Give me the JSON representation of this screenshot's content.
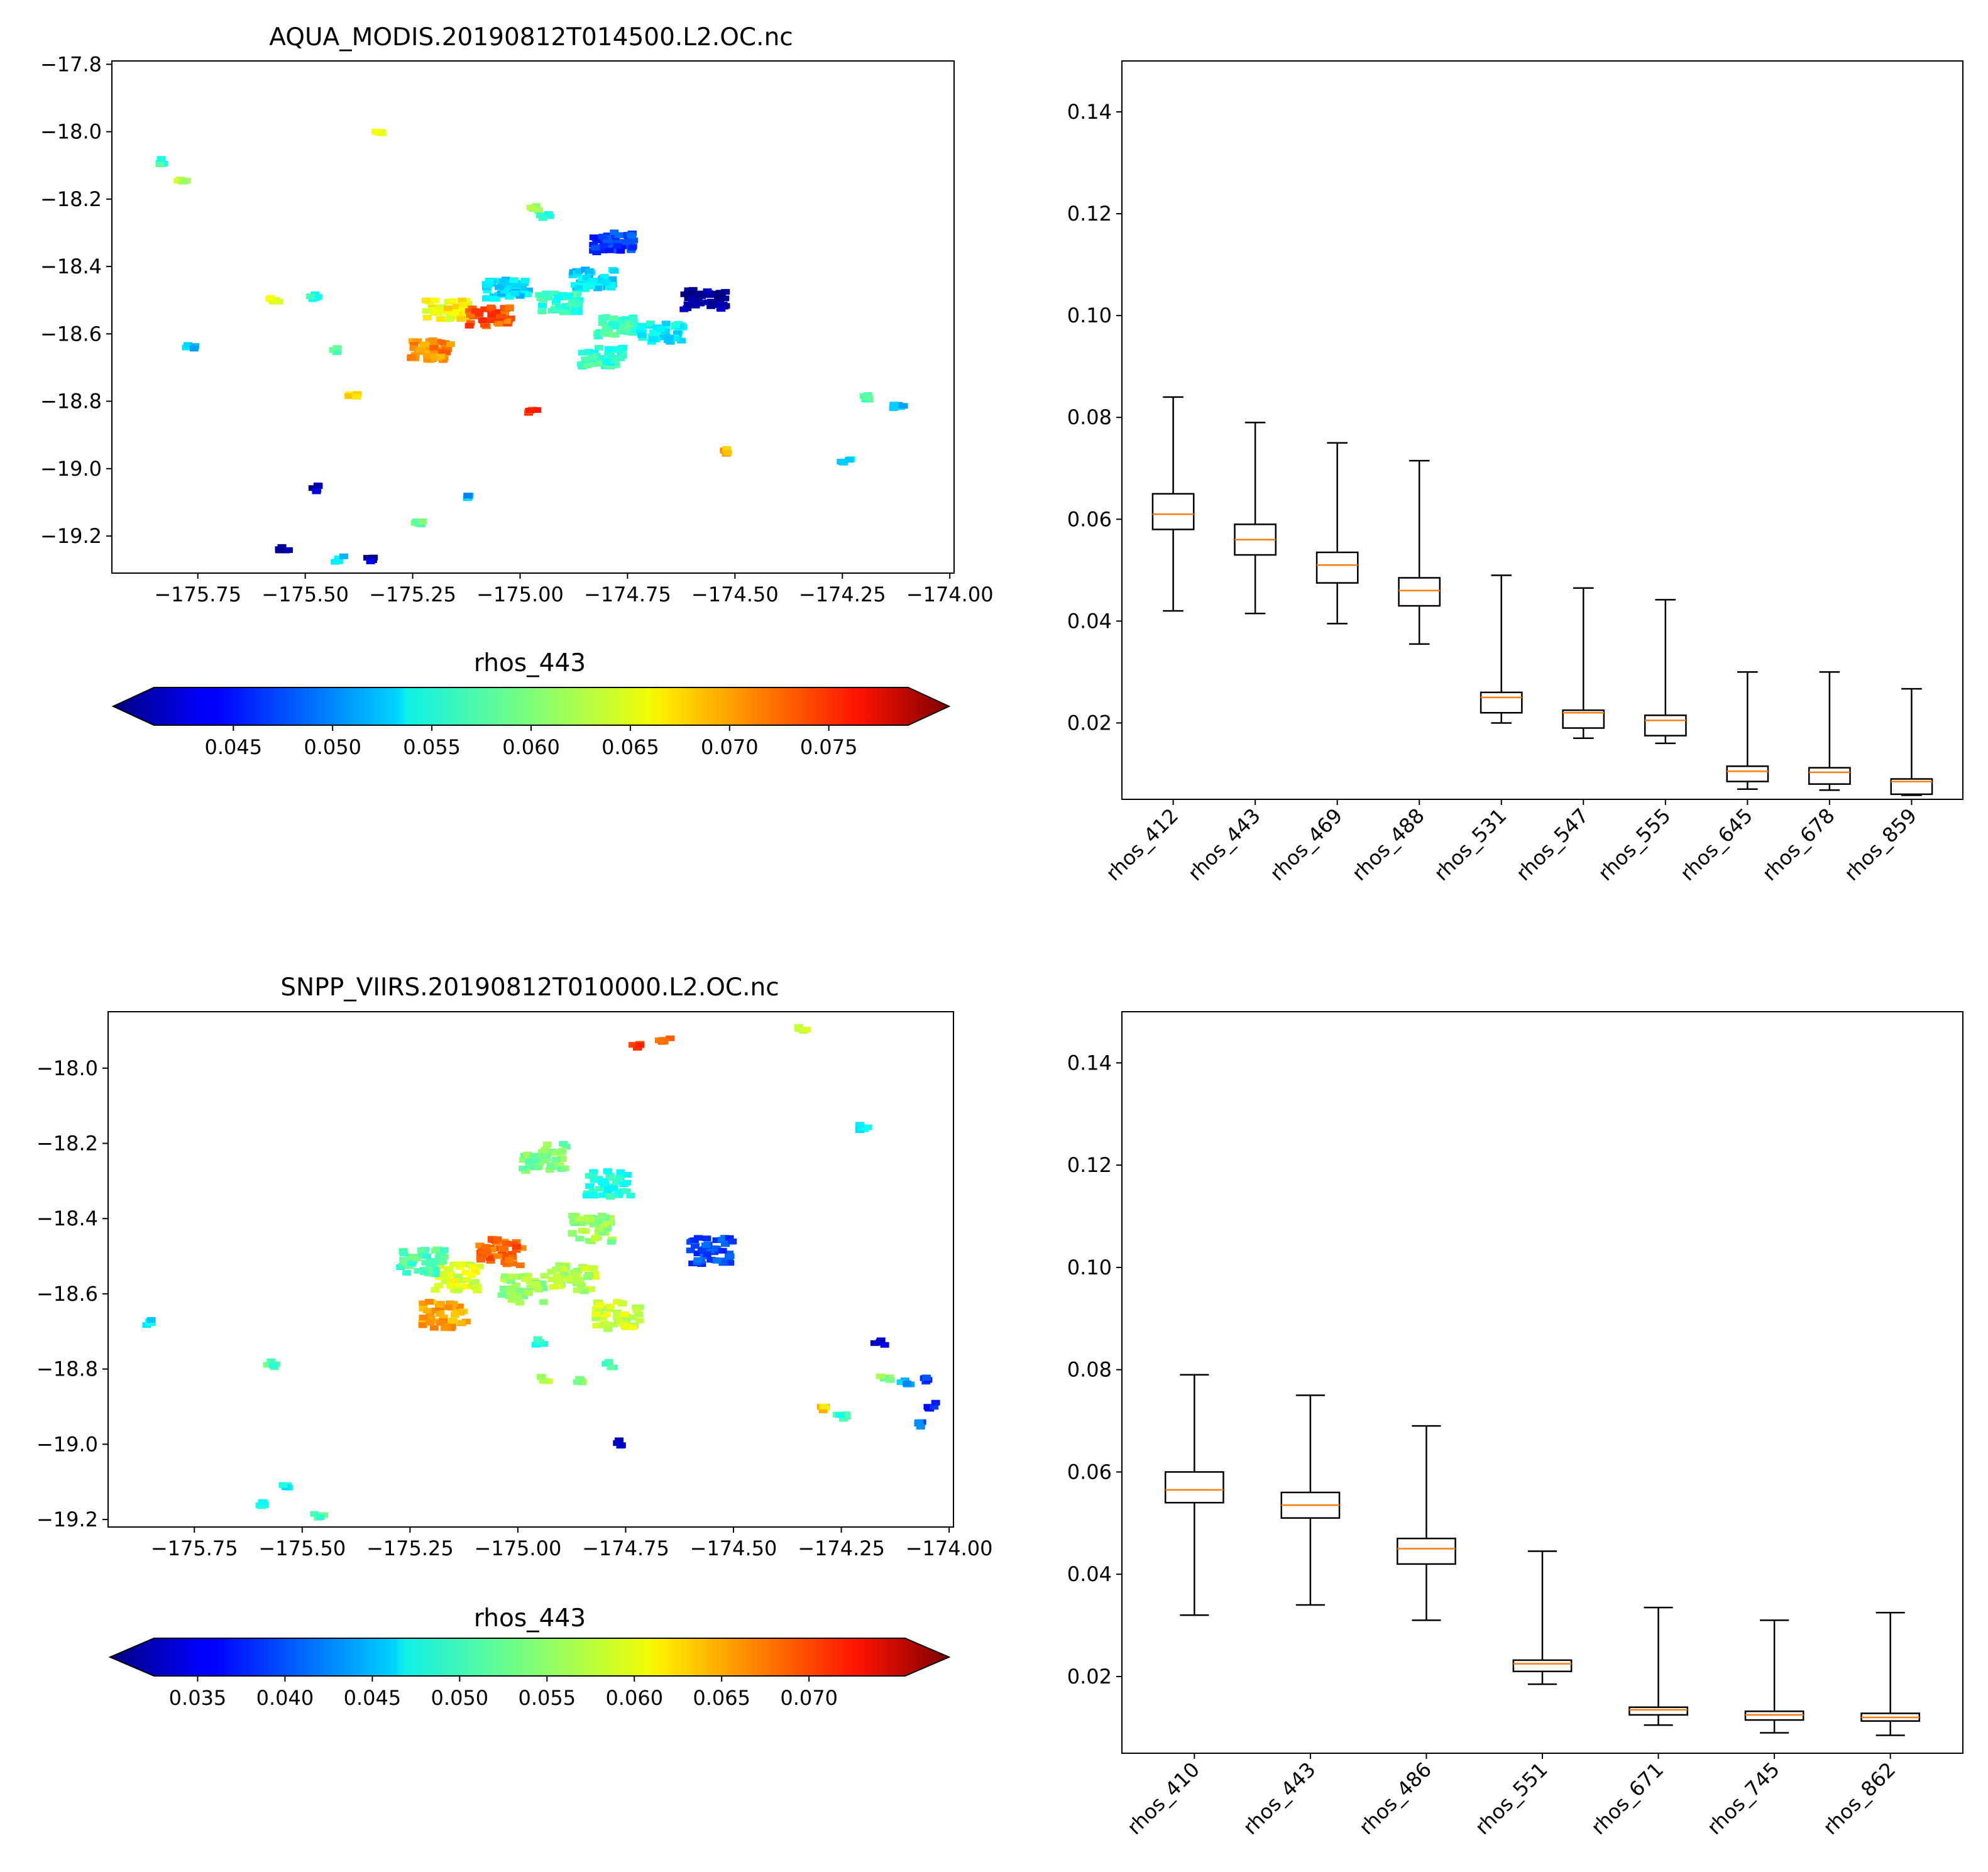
{
  "chart_data": [
    {
      "type": "scatter",
      "title": "AQUA_MODIS.20190812T014500.L2.OC.nc",
      "xlabel": "",
      "ylabel": "",
      "xlim": [
        -175.95,
        -173.99
      ],
      "ylim": [
        -19.31,
        -17.79
      ],
      "xticks": [
        "−175.75",
        "−175.50",
        "−175.25",
        "−175.00",
        "−174.75",
        "−174.50",
        "−174.25",
        "−174.00"
      ],
      "yticks": [
        "−17.8",
        "−18.0",
        "−18.2",
        "−18.4",
        "−18.6",
        "−18.8",
        "−19.0",
        "−19.2"
      ],
      "colorbar": {
        "label": "rhos_443",
        "min": 0.041,
        "max": 0.079,
        "ticks": [
          "0.045",
          "0.050",
          "0.055",
          "0.060",
          "0.065",
          "0.070",
          "0.075"
        ]
      },
      "clusters": [
        {
          "lon": -174.79,
          "lat": -18.32,
          "value": 0.048
        },
        {
          "lon": -174.84,
          "lat": -18.43,
          "value": 0.054
        },
        {
          "lon": -174.92,
          "lat": -18.5,
          "value": 0.057
        },
        {
          "lon": -174.78,
          "lat": -18.57,
          "value": 0.058
        },
        {
          "lon": -174.82,
          "lat": -18.66,
          "value": 0.057
        },
        {
          "lon": -175.04,
          "lat": -18.46,
          "value": 0.054
        },
        {
          "lon": -175.18,
          "lat": -18.52,
          "value": 0.065
        },
        {
          "lon": -175.08,
          "lat": -18.54,
          "value": 0.071
        },
        {
          "lon": -175.22,
          "lat": -18.64,
          "value": 0.069
        },
        {
          "lon": -174.68,
          "lat": -18.59,
          "value": 0.055
        },
        {
          "lon": -174.58,
          "lat": -18.49,
          "value": 0.042
        },
        {
          "lon": -175.84,
          "lat": -18.08,
          "value": 0.057
        },
        {
          "lon": -175.8,
          "lat": -18.14,
          "value": 0.063
        },
        {
          "lon": -175.34,
          "lat": -18.0,
          "value": 0.063
        },
        {
          "lon": -174.98,
          "lat": -18.22,
          "value": 0.06
        },
        {
          "lon": -174.95,
          "lat": -18.24,
          "value": 0.058
        },
        {
          "lon": -175.58,
          "lat": -18.49,
          "value": 0.064
        },
        {
          "lon": -175.49,
          "lat": -18.48,
          "value": 0.056
        },
        {
          "lon": -175.78,
          "lat": -18.63,
          "value": 0.053
        },
        {
          "lon": -175.44,
          "lat": -18.64,
          "value": 0.058
        },
        {
          "lon": -175.4,
          "lat": -18.77,
          "value": 0.066
        },
        {
          "lon": -174.98,
          "lat": -18.82,
          "value": 0.072
        },
        {
          "lon": -174.54,
          "lat": -18.94,
          "value": 0.068
        },
        {
          "lon": -174.21,
          "lat": -18.78,
          "value": 0.058
        },
        {
          "lon": -174.13,
          "lat": -18.81,
          "value": 0.052
        },
        {
          "lon": -174.25,
          "lat": -18.97,
          "value": 0.053
        },
        {
          "lon": -175.49,
          "lat": -19.05,
          "value": 0.043
        },
        {
          "lon": -175.14,
          "lat": -19.08,
          "value": 0.052
        },
        {
          "lon": -175.25,
          "lat": -19.15,
          "value": 0.06
        },
        {
          "lon": -175.56,
          "lat": -19.23,
          "value": 0.042
        },
        {
          "lon": -175.43,
          "lat": -19.26,
          "value": 0.054
        },
        {
          "lon": -175.36,
          "lat": -19.26,
          "value": 0.043
        }
      ]
    },
    {
      "type": "box",
      "title": "",
      "ylim": [
        0.005,
        0.15
      ],
      "yticks": [
        "0.02",
        "0.04",
        "0.06",
        "0.08",
        "0.10",
        "0.12",
        "0.14"
      ],
      "categories": [
        "rhos_412",
        "rhos_443",
        "rhos_469",
        "rhos_488",
        "rhos_531",
        "rhos_547",
        "rhos_555",
        "rhos_645",
        "rhos_678",
        "rhos_859"
      ],
      "boxes": [
        {
          "whislo": 0.042,
          "q1": 0.058,
          "med": 0.061,
          "q3": 0.065,
          "whishi": 0.084
        },
        {
          "whislo": 0.0415,
          "q1": 0.053,
          "med": 0.056,
          "q3": 0.059,
          "whishi": 0.079
        },
        {
          "whislo": 0.0395,
          "q1": 0.0475,
          "med": 0.051,
          "q3": 0.0535,
          "whishi": 0.075
        },
        {
          "whislo": 0.0355,
          "q1": 0.043,
          "med": 0.046,
          "q3": 0.0485,
          "whishi": 0.0715
        },
        {
          "whislo": 0.02,
          "q1": 0.022,
          "med": 0.025,
          "q3": 0.026,
          "whishi": 0.049
        },
        {
          "whislo": 0.017,
          "q1": 0.019,
          "med": 0.022,
          "q3": 0.0225,
          "whishi": 0.0465
        },
        {
          "whislo": 0.016,
          "q1": 0.0175,
          "med": 0.0205,
          "q3": 0.0215,
          "whishi": 0.0442
        },
        {
          "whislo": 0.007,
          "q1": 0.0085,
          "med": 0.0105,
          "q3": 0.0115,
          "whishi": 0.03
        },
        {
          "whislo": 0.0068,
          "q1": 0.008,
          "med": 0.0103,
          "q3": 0.0112,
          "whishi": 0.03
        },
        {
          "whislo": 0.0058,
          "q1": 0.006,
          "med": 0.0085,
          "q3": 0.009,
          "whishi": 0.0267
        }
      ]
    },
    {
      "type": "scatter",
      "title": "SNPP_VIIRS.20190812T010000.L2.OC.nc",
      "xlabel": "",
      "ylabel": "",
      "xlim": [
        -175.95,
        -173.99
      ],
      "ylim": [
        -19.22,
        -17.85
      ],
      "xticks": [
        "−175.75",
        "−175.50",
        "−175.25",
        "−175.00",
        "−174.75",
        "−174.50",
        "−174.25",
        "−174.00"
      ],
      "yticks": [
        "−18.0",
        "−18.2",
        "−18.4",
        "−18.6",
        "−18.8",
        "−19.0",
        "−19.2"
      ],
      "colorbar": {
        "label": "rhos_443",
        "min": 0.0325,
        "max": 0.0755,
        "ticks": [
          "0.035",
          "0.040",
          "0.045",
          "0.050",
          "0.055",
          "0.060",
          "0.065",
          "0.070"
        ]
      },
      "clusters": [
        {
          "lon": -174.8,
          "lat": -18.3,
          "value": 0.05
        },
        {
          "lon": -174.84,
          "lat": -18.42,
          "value": 0.055
        },
        {
          "lon": -174.88,
          "lat": -18.55,
          "value": 0.056
        },
        {
          "lon": -174.78,
          "lat": -18.65,
          "value": 0.057
        },
        {
          "lon": -174.95,
          "lat": -18.23,
          "value": 0.054
        },
        {
          "lon": -175.05,
          "lat": -18.48,
          "value": 0.066
        },
        {
          "lon": -175.15,
          "lat": -18.55,
          "value": 0.058
        },
        {
          "lon": -175.0,
          "lat": -18.58,
          "value": 0.055
        },
        {
          "lon": -175.18,
          "lat": -18.65,
          "value": 0.063
        },
        {
          "lon": -175.23,
          "lat": -18.51,
          "value": 0.052
        },
        {
          "lon": -174.56,
          "lat": -18.48,
          "value": 0.041
        },
        {
          "lon": -174.74,
          "lat": -17.93,
          "value": 0.068
        },
        {
          "lon": -174.67,
          "lat": -17.92,
          "value": 0.066
        },
        {
          "lon": -174.35,
          "lat": -17.89,
          "value": 0.058
        },
        {
          "lon": -174.21,
          "lat": -18.15,
          "value": 0.048
        },
        {
          "lon": -175.87,
          "lat": -18.67,
          "value": 0.048
        },
        {
          "lon": -175.58,
          "lat": -18.78,
          "value": 0.052
        },
        {
          "lon": -174.96,
          "lat": -18.72,
          "value": 0.05
        },
        {
          "lon": -174.95,
          "lat": -18.82,
          "value": 0.057
        },
        {
          "lon": -174.8,
          "lat": -18.78,
          "value": 0.051
        },
        {
          "lon": -174.86,
          "lat": -18.82,
          "value": 0.054
        },
        {
          "lon": -174.78,
          "lat": -18.99,
          "value": 0.035
        },
        {
          "lon": -174.17,
          "lat": -18.72,
          "value": 0.036
        },
        {
          "lon": -174.16,
          "lat": -18.82,
          "value": 0.054
        },
        {
          "lon": -174.11,
          "lat": -18.83,
          "value": 0.045
        },
        {
          "lon": -174.07,
          "lat": -18.82,
          "value": 0.04
        },
        {
          "lon": -174.05,
          "lat": -18.89,
          "value": 0.039
        },
        {
          "lon": -174.07,
          "lat": -18.94,
          "value": 0.042
        },
        {
          "lon": -174.3,
          "lat": -18.9,
          "value": 0.061
        },
        {
          "lon": -174.26,
          "lat": -18.92,
          "value": 0.051
        },
        {
          "lon": -175.55,
          "lat": -19.1,
          "value": 0.049
        },
        {
          "lon": -175.6,
          "lat": -19.15,
          "value": 0.05
        },
        {
          "lon": -175.47,
          "lat": -19.18,
          "value": 0.052
        }
      ]
    },
    {
      "type": "box",
      "title": "",
      "ylim": [
        0.005,
        0.15
      ],
      "yticks": [
        "0.02",
        "0.04",
        "0.06",
        "0.08",
        "0.10",
        "0.12",
        "0.14"
      ],
      "categories": [
        "rhos_410",
        "rhos_443",
        "rhos_486",
        "rhos_551",
        "rhos_671",
        "rhos_745",
        "rhos_862"
      ],
      "boxes": [
        {
          "whislo": 0.032,
          "q1": 0.054,
          "med": 0.0565,
          "q3": 0.06,
          "whishi": 0.079
        },
        {
          "whislo": 0.034,
          "q1": 0.051,
          "med": 0.0535,
          "q3": 0.056,
          "whishi": 0.075
        },
        {
          "whislo": 0.031,
          "q1": 0.042,
          "med": 0.045,
          "q3": 0.047,
          "whishi": 0.069
        },
        {
          "whislo": 0.0185,
          "q1": 0.021,
          "med": 0.0225,
          "q3": 0.0232,
          "whishi": 0.0445
        },
        {
          "whislo": 0.0105,
          "q1": 0.0125,
          "med": 0.0135,
          "q3": 0.014,
          "whishi": 0.0335
        },
        {
          "whislo": 0.009,
          "q1": 0.0115,
          "med": 0.0125,
          "q3": 0.0132,
          "whishi": 0.031
        },
        {
          "whislo": 0.0085,
          "q1": 0.0113,
          "med": 0.012,
          "q3": 0.0128,
          "whishi": 0.0325
        }
      ]
    }
  ]
}
